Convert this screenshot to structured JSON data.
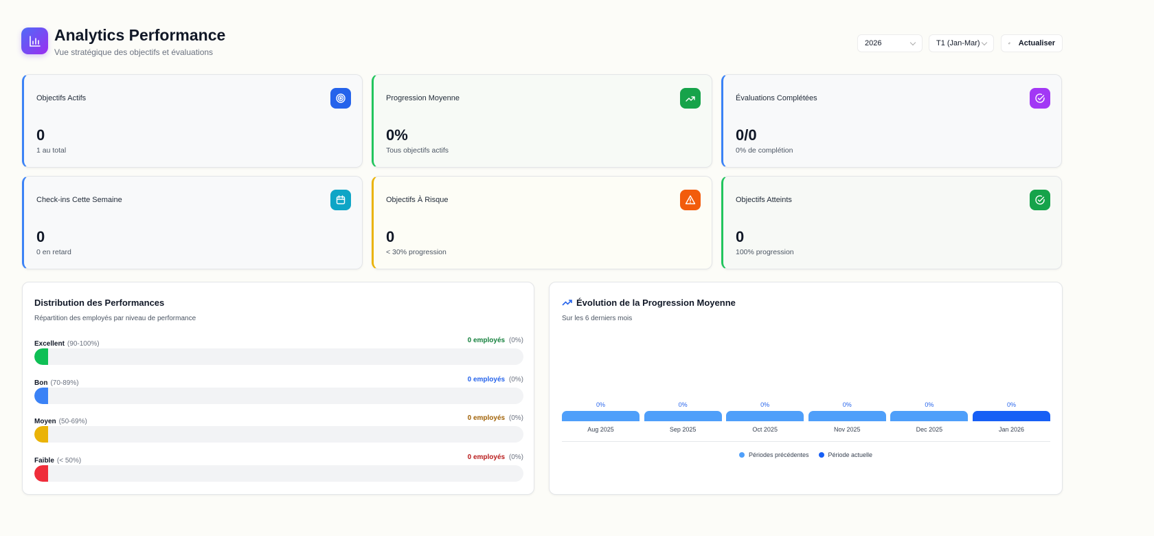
{
  "header": {
    "title": "Analytics Performance",
    "subtitle": "Vue stratégique des objectifs et évaluations",
    "year": "2026",
    "period": "T1 (Jan-Mar)",
    "refresh": "Actualiser"
  },
  "cards": [
    {
      "label": "Objectifs Actifs",
      "value": "0",
      "sub": "1 au total",
      "icon": "target-icon",
      "color": "#2563eb"
    },
    {
      "label": "Progression Moyenne",
      "value": "0%",
      "sub": "Tous objectifs actifs",
      "icon": "trending-up-icon",
      "color": "#16a34a"
    },
    {
      "label": "Évaluations Complétées",
      "value": "0/0",
      "sub": "0% de complétion",
      "icon": "check-circle-icon",
      "color": "#a238f5"
    },
    {
      "label": "Check-ins Cette Semaine",
      "value": "0",
      "sub": "0 en retard",
      "icon": "calendar-icon",
      "color": "#0ea5c6"
    },
    {
      "label": "Objectifs À Risque",
      "value": "0",
      "sub": "< 30% progression",
      "icon": "alert-triangle-icon",
      "color": "#f25c0c"
    },
    {
      "label": "Objectifs Atteints",
      "value": "0",
      "sub": "100% progression",
      "icon": "check-circle-icon",
      "color": "#16a34a"
    }
  ],
  "distribution": {
    "title": "Distribution des Performances",
    "subtitle": "Répartition des employés par niveau de performance",
    "levels": [
      {
        "name": "Excellent",
        "range": "(90-100%)",
        "count": "0 employés",
        "pct": "(0%)",
        "color": "#0fbf55",
        "text_color": "#15803d"
      },
      {
        "name": "Bon",
        "range": "(70-89%)",
        "count": "0 employés",
        "pct": "(0%)",
        "color": "#3b82f6",
        "text_color": "#2563eb"
      },
      {
        "name": "Moyen",
        "range": "(50-69%)",
        "count": "0 employés",
        "pct": "(0%)",
        "color": "#eab308",
        "text_color": "#a16207"
      },
      {
        "name": "Faible",
        "range": "(< 50%)",
        "count": "0 employés",
        "pct": "(0%)",
        "color": "#ef2d3a",
        "text_color": "#b91c1c"
      }
    ]
  },
  "evolution": {
    "title": "Évolution de la Progression Moyenne",
    "subtitle": "Sur les 6 derniers mois",
    "legend_prev": "Périodes précédentes",
    "legend_current": "Période actuelle",
    "colors": {
      "previous": "#4f9ffa",
      "current": "#175ff5"
    }
  },
  "chart_data": {
    "type": "bar",
    "categories": [
      "Aug 2025",
      "Sep 2025",
      "Oct 2025",
      "Nov 2025",
      "Dec 2025",
      "Jan 2026"
    ],
    "values": [
      0,
      0,
      0,
      0,
      0,
      0
    ],
    "labels": [
      "0%",
      "0%",
      "0%",
      "0%",
      "0%",
      "0%"
    ],
    "current_index": 5
  }
}
